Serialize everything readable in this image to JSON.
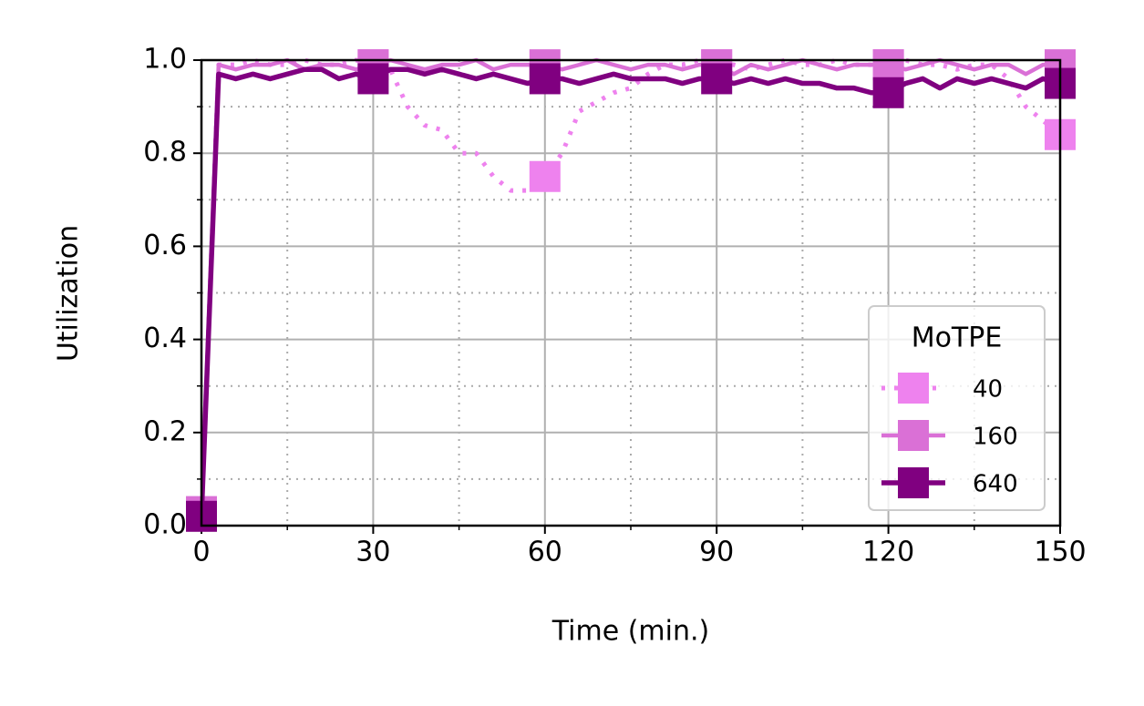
{
  "chart_data": {
    "type": "line",
    "xlabel": "Time (min.)",
    "ylabel": "Utilization",
    "x": [
      0,
      3,
      6,
      9,
      12,
      15,
      18,
      21,
      24,
      27,
      30,
      33,
      36,
      39,
      42,
      45,
      48,
      51,
      54,
      57,
      60,
      63,
      66,
      69,
      72,
      75,
      78,
      81,
      84,
      87,
      90,
      93,
      96,
      99,
      102,
      105,
      108,
      111,
      114,
      117,
      120,
      123,
      126,
      129,
      132,
      135,
      138,
      141,
      144,
      147,
      150
    ],
    "series": [
      {
        "name": "40",
        "color": "#ee82ee",
        "linestyle": "dotted",
        "marker": "square",
        "markevery": 10,
        "values": [
          0.03,
          0.99,
          0.99,
          1.0,
          0.99,
          0.99,
          1.0,
          0.99,
          0.99,
          1.0,
          0.99,
          0.98,
          0.9,
          0.86,
          0.85,
          0.8,
          0.8,
          0.75,
          0.72,
          0.72,
          0.75,
          0.8,
          0.89,
          0.91,
          0.93,
          0.94,
          0.97,
          0.99,
          0.99,
          1.0,
          0.99,
          0.99,
          0.98,
          0.99,
          1.0,
          0.99,
          0.99,
          1.0,
          0.99,
          0.99,
          0.99,
          1.0,
          0.99,
          0.99,
          0.98,
          0.99,
          0.99,
          0.96,
          0.9,
          0.87,
          0.84
        ]
      },
      {
        "name": "160",
        "color": "#da70d6",
        "linestyle": "solid",
        "marker": "square",
        "markevery": 10,
        "values": [
          0.03,
          0.99,
          0.98,
          0.99,
          0.99,
          1.0,
          0.98,
          0.99,
          0.99,
          0.98,
          0.99,
          1.0,
          0.99,
          0.98,
          0.99,
          0.99,
          1.0,
          0.98,
          0.99,
          0.99,
          0.99,
          0.98,
          0.99,
          1.0,
          0.99,
          0.98,
          0.99,
          0.99,
          0.98,
          0.99,
          0.99,
          0.97,
          0.99,
          0.98,
          0.99,
          1.0,
          0.99,
          0.98,
          0.99,
          0.99,
          0.99,
          0.98,
          0.99,
          1.0,
          0.99,
          0.98,
          0.99,
          0.99,
          0.97,
          0.99,
          0.99
        ]
      },
      {
        "name": "640",
        "color": "#800080",
        "linestyle": "solid",
        "marker": "square",
        "markevery": 10,
        "values": [
          0.02,
          0.97,
          0.96,
          0.97,
          0.96,
          0.97,
          0.98,
          0.98,
          0.96,
          0.97,
          0.96,
          0.98,
          0.98,
          0.97,
          0.98,
          0.97,
          0.96,
          0.97,
          0.96,
          0.95,
          0.96,
          0.96,
          0.95,
          0.96,
          0.97,
          0.96,
          0.96,
          0.96,
          0.95,
          0.96,
          0.96,
          0.95,
          0.96,
          0.95,
          0.96,
          0.95,
          0.95,
          0.94,
          0.94,
          0.93,
          0.93,
          0.95,
          0.96,
          0.94,
          0.96,
          0.95,
          0.96,
          0.95,
          0.94,
          0.96,
          0.95
        ]
      }
    ],
    "xlim": [
      0,
      150
    ],
    "ylim": [
      0,
      1
    ],
    "xticks": [
      0,
      30,
      60,
      90,
      120,
      150
    ],
    "yticks": [
      {
        "value": 0,
        "label": "0.0"
      },
      {
        "value": 0.2,
        "label": "0.2"
      },
      {
        "value": 0.4,
        "label": "0.4"
      },
      {
        "value": 0.6,
        "label": "0.6"
      },
      {
        "value": 0.8,
        "label": "0.8"
      },
      {
        "value": 1,
        "label": "1.0"
      }
    ],
    "xminorticks": [
      15,
      45,
      75,
      105,
      135
    ],
    "yminorticks": [
      0.1,
      0.3,
      0.5,
      0.7,
      0.9
    ],
    "grid": true,
    "legend_title": "MoTPE",
    "legend": "lower right"
  }
}
